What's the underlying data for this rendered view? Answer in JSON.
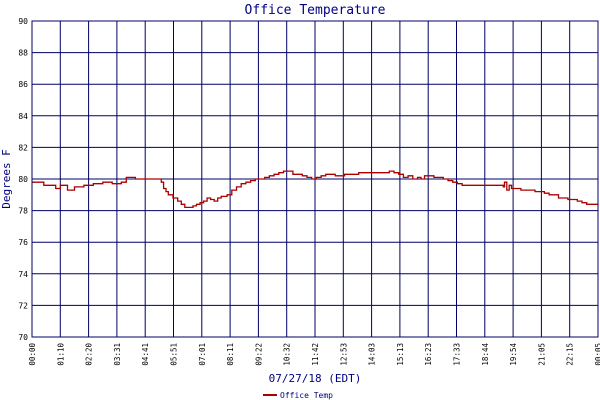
{
  "chart_data": {
    "type": "line",
    "title": "Office Temperature",
    "xlabel": "07/27/18 (EDT)",
    "ylabel": "Degrees F",
    "ylim": [
      70,
      90
    ],
    "yticks": [
      70,
      72,
      74,
      76,
      78,
      80,
      82,
      84,
      86,
      88,
      90
    ],
    "xticks": [
      "00:00",
      "01:10",
      "02:20",
      "03:31",
      "04:41",
      "05:51",
      "07:01",
      "08:11",
      "09:22",
      "10:32",
      "11:42",
      "12:53",
      "14:03",
      "15:13",
      "16:23",
      "17:33",
      "18:44",
      "19:54",
      "21:05",
      "22:15",
      "00:05"
    ],
    "grid": true,
    "colors": {
      "grid": "#000066",
      "line": "#aa0000",
      "text": "#000080",
      "tick_text": "#000000"
    },
    "legend": {
      "position": "bottom-left"
    },
    "series": [
      {
        "name": "Office Temp",
        "x_hours": [
          0.0,
          0.5,
          1.0,
          1.01,
          1.2,
          1.21,
          1.5,
          1.51,
          1.8,
          1.81,
          2.2,
          2.21,
          2.6,
          2.61,
          3.0,
          3.01,
          3.4,
          3.41,
          3.8,
          4.0,
          4.01,
          4.4,
          4.7,
          4.71,
          5.0,
          5.3,
          5.5,
          5.6,
          5.7,
          5.8,
          6.0,
          6.2,
          6.35,
          6.5,
          6.7,
          6.85,
          7.0,
          7.15,
          7.3,
          7.45,
          7.6,
          7.75,
          7.9,
          8.05,
          8.3,
          8.5,
          8.7,
          8.9,
          9.1,
          9.3,
          9.5,
          9.7,
          9.9,
          10.1,
          10.3,
          10.5,
          10.7,
          10.9,
          11.1,
          11.3,
          11.5,
          11.7,
          11.9,
          12.1,
          12.3,
          12.5,
          12.7,
          12.9,
          13.1,
          13.3,
          13.6,
          13.9,
          14.2,
          14.4,
          14.7,
          15.0,
          15.2,
          15.4,
          15.6,
          15.8,
          16.0,
          16.2,
          16.4,
          16.55,
          16.7,
          16.9,
          17.1,
          17.3,
          17.5,
          17.7,
          17.9,
          18.1,
          18.3,
          18.5,
          18.7,
          18.9,
          19.1,
          19.3,
          19.5,
          19.7,
          19.9,
          20.05,
          20.1,
          20.2,
          20.3,
          20.4,
          20.6,
          20.8,
          21.0,
          21.2,
          21.4,
          21.6,
          21.8,
          22.0,
          22.2,
          22.4,
          22.6,
          22.8,
          23.0,
          23.2,
          23.4,
          23.6,
          23.8,
          24.0,
          24.08
        ],
        "values": [
          79.8,
          79.6,
          79.6,
          79.4,
          79.4,
          79.6,
          79.6,
          79.3,
          79.3,
          79.5,
          79.5,
          79.6,
          79.6,
          79.7,
          79.7,
          79.8,
          79.8,
          79.7,
          79.8,
          79.8,
          80.1,
          80.0,
          80.0,
          80.0,
          80.0,
          80.0,
          79.8,
          79.4,
          79.2,
          79.0,
          78.8,
          78.6,
          78.4,
          78.2,
          78.2,
          78.3,
          78.4,
          78.5,
          78.6,
          78.8,
          78.7,
          78.6,
          78.8,
          78.9,
          79.0,
          79.3,
          79.5,
          79.7,
          79.8,
          79.9,
          80.0,
          80.0,
          80.1,
          80.2,
          80.3,
          80.4,
          80.5,
          80.5,
          80.3,
          80.3,
          80.2,
          80.1,
          80.0,
          80.1,
          80.2,
          80.3,
          80.3,
          80.2,
          80.2,
          80.3,
          80.3,
          80.4,
          80.4,
          80.4,
          80.4,
          80.4,
          80.5,
          80.4,
          80.3,
          80.1,
          80.2,
          80.0,
          80.1,
          80.0,
          80.2,
          80.2,
          80.1,
          80.1,
          80.0,
          79.9,
          79.8,
          79.7,
          79.6,
          79.6,
          79.6,
          79.6,
          79.6,
          79.6,
          79.6,
          79.6,
          79.6,
          79.5,
          79.8,
          79.3,
          79.6,
          79.4,
          79.4,
          79.3,
          79.3,
          79.3,
          79.2,
          79.2,
          79.1,
          79.0,
          79.0,
          78.8,
          78.8,
          78.7,
          78.7,
          78.6,
          78.5,
          78.4,
          78.4,
          78.4,
          78.4
        ]
      }
    ]
  }
}
